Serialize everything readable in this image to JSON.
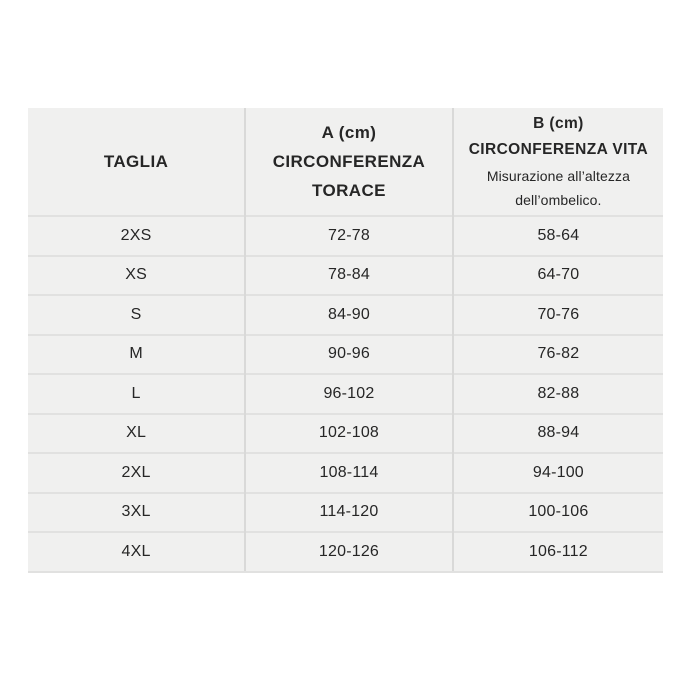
{
  "colors": {
    "page-bg": "#ffffff",
    "table-bg": "#f0f0ef",
    "line-h": "#e1e1e0",
    "line-v": "#d9d9d8",
    "text": "#262626"
  },
  "table": {
    "header": {
      "size_label": "TAGLIA",
      "a": {
        "line1": "A (cm)",
        "line2": "CIRCONFERENZA",
        "line3": "TORACE"
      },
      "b": {
        "line1": "B (cm)",
        "line2": "CIRCONFERENZA VITA",
        "note1": "Misurazione all’altezza",
        "note2": "dell’ombelico."
      }
    },
    "rows": [
      {
        "size": "2XS",
        "a": "72-78",
        "b": "58-64"
      },
      {
        "size": "XS",
        "a": "78-84",
        "b": "64-70"
      },
      {
        "size": "S",
        "a": "84-90",
        "b": "70-76"
      },
      {
        "size": "M",
        "a": "90-96",
        "b": "76-82"
      },
      {
        "size": "L",
        "a": "96-102",
        "b": "82-88"
      },
      {
        "size": "XL",
        "a": "102-108",
        "b": "88-94"
      },
      {
        "size": "2XL",
        "a": "108-114",
        "b": "94-100"
      },
      {
        "size": "3XL",
        "a": "114-120",
        "b": "100-106"
      },
      {
        "size": "4XL",
        "a": "120-126",
        "b": "106-112"
      }
    ]
  }
}
